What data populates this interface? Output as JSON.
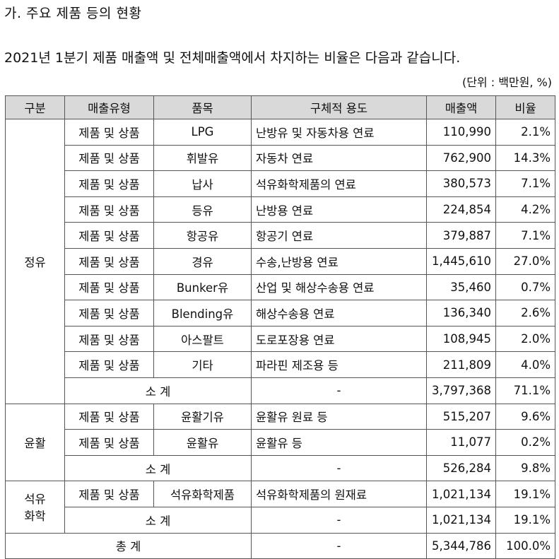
{
  "heading": "가. 주요 제품 등의 현황",
  "intro": "2021년 1분기 제품 매출액 및 전체매출액에서 차지하는 비율은 다음과 같습니다.",
  "unit": "(단위 : 백만원, %)",
  "table": {
    "headers": [
      "구분",
      "매출유형",
      "품목",
      "구체적 용도",
      "매출액",
      "비율"
    ],
    "groups": {
      "refining": "정유",
      "lubricant": "윤활",
      "petrochem_line1": "석유",
      "petrochem_line2": "화학"
    },
    "refining_rows": [
      {
        "type": "제품 및 상품",
        "item": "LPG",
        "use": "난방유 및 자동차용 연료",
        "sales": "110,990",
        "ratio": "2.1%"
      },
      {
        "type": "제품 및 상품",
        "item": "휘발유",
        "use": "자동차 연료",
        "sales": "762,900",
        "ratio": "14.3%"
      },
      {
        "type": "제품 및 상품",
        "item": "납사",
        "use": "석유화학제품의 연료",
        "sales": "380,573",
        "ratio": "7.1%"
      },
      {
        "type": "제품 및 상품",
        "item": "등유",
        "use": "난방용 연료",
        "sales": "224,854",
        "ratio": "4.2%"
      },
      {
        "type": "제품 및 상품",
        "item": "항공유",
        "use": "항공기 연료",
        "sales": "379,887",
        "ratio": "7.1%"
      },
      {
        "type": "제품 및 상품",
        "item": "경유",
        "use": "수송,난방용 연료",
        "sales": "1,445,610",
        "ratio": "27.0%"
      },
      {
        "type": "제품 및 상품",
        "item": "Bunker유",
        "use": "산업 및 해상수송용 연료",
        "sales": "35,460",
        "ratio": "0.7%"
      },
      {
        "type": "제품 및 상품",
        "item": "Blending유",
        "use": "해상수송용 연료",
        "sales": "136,340",
        "ratio": "2.6%"
      },
      {
        "type": "제품 및 상품",
        "item": "아스팔트",
        "use": "도로포장용 연료",
        "sales": "108,945",
        "ratio": "2.0%"
      },
      {
        "type": "제품 및 상품",
        "item": "기타",
        "use": "파라핀 제조용 등",
        "sales": "211,809",
        "ratio": "4.0%"
      }
    ],
    "refining_subtotal": {
      "label": "소 계",
      "use": "-",
      "sales": "3,797,368",
      "ratio": "71.1%"
    },
    "lubricant_rows": [
      {
        "type": "제품 및 상품",
        "item": "윤활기유",
        "use": "윤활유 원료 등",
        "sales": "515,207",
        "ratio": "9.6%"
      },
      {
        "type": "제품 및 상품",
        "item": "윤활유",
        "use": "윤활유 등",
        "sales": "11,077",
        "ratio": "0.2%"
      }
    ],
    "lubricant_subtotal": {
      "label": "소 계",
      "use": "-",
      "sales": "526,284",
      "ratio": "9.8%"
    },
    "petrochem_rows": [
      {
        "type": "제품 및 상품",
        "item": "석유화학제품",
        "use": "석유화학제품의 원재료",
        "sales": "1,021,134",
        "ratio": "19.1%"
      }
    ],
    "petrochem_subtotal": {
      "label": "소 계",
      "use": "-",
      "sales": "1,021,134",
      "ratio": "19.1%"
    },
    "total": {
      "label": "총 계",
      "use": "-",
      "sales": "5,344,786",
      "ratio": "100.0%"
    }
  }
}
